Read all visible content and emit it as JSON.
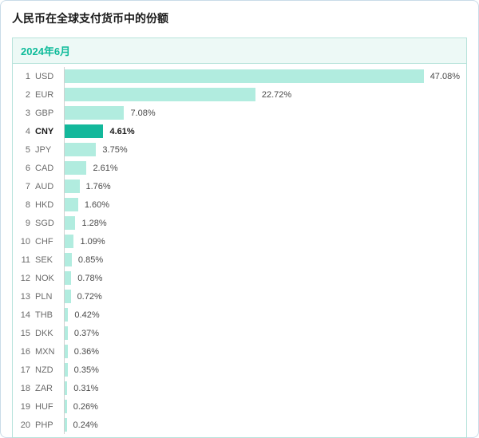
{
  "chart": {
    "title": "人民币在全球支付货币中的份额",
    "period": "2024年6月",
    "type": "bar",
    "max_value": 47.08,
    "bar_area_full_width": 470,
    "bar_color_default": "#b1ecdf",
    "bar_color_highlight": "#13b89b",
    "panel_border_color": "#b7e3db",
    "header_bg": "#edf9f6",
    "header_text_color": "#0fbb9a",
    "rank_text_color": "#6b6b6b",
    "currency_text_color": "#6b6b6b",
    "value_text_color": "#4a4a4a",
    "axis_line_color": "#d0d0d0",
    "outer_border_color": "#c9dbe8",
    "background_color": "#ffffff",
    "title_fontsize": 14,
    "row_fontsize": 11,
    "items": [
      {
        "rank": 1,
        "currency": "USD",
        "value": 47.08,
        "label": "47.08%",
        "highlight": false
      },
      {
        "rank": 2,
        "currency": "EUR",
        "value": 22.72,
        "label": "22.72%",
        "highlight": false
      },
      {
        "rank": 3,
        "currency": "GBP",
        "value": 7.08,
        "label": "7.08%",
        "highlight": false
      },
      {
        "rank": 4,
        "currency": "CNY",
        "value": 4.61,
        "label": "4.61%",
        "highlight": true
      },
      {
        "rank": 5,
        "currency": "JPY",
        "value": 3.75,
        "label": "3.75%",
        "highlight": false
      },
      {
        "rank": 6,
        "currency": "CAD",
        "value": 2.61,
        "label": "2.61%",
        "highlight": false
      },
      {
        "rank": 7,
        "currency": "AUD",
        "value": 1.76,
        "label": "1.76%",
        "highlight": false
      },
      {
        "rank": 8,
        "currency": "HKD",
        "value": 1.6,
        "label": "1.60%",
        "highlight": false
      },
      {
        "rank": 9,
        "currency": "SGD",
        "value": 1.28,
        "label": "1.28%",
        "highlight": false
      },
      {
        "rank": 10,
        "currency": "CHF",
        "value": 1.09,
        "label": "1.09%",
        "highlight": false
      },
      {
        "rank": 11,
        "currency": "SEK",
        "value": 0.85,
        "label": "0.85%",
        "highlight": false
      },
      {
        "rank": 12,
        "currency": "NOK",
        "value": 0.78,
        "label": "0.78%",
        "highlight": false
      },
      {
        "rank": 13,
        "currency": "PLN",
        "value": 0.72,
        "label": "0.72%",
        "highlight": false
      },
      {
        "rank": 14,
        "currency": "THB",
        "value": 0.42,
        "label": "0.42%",
        "highlight": false
      },
      {
        "rank": 15,
        "currency": "DKK",
        "value": 0.37,
        "label": "0.37%",
        "highlight": false
      },
      {
        "rank": 16,
        "currency": "MXN",
        "value": 0.36,
        "label": "0.36%",
        "highlight": false
      },
      {
        "rank": 17,
        "currency": "NZD",
        "value": 0.35,
        "label": "0.35%",
        "highlight": false
      },
      {
        "rank": 18,
        "currency": "ZAR",
        "value": 0.31,
        "label": "0.31%",
        "highlight": false
      },
      {
        "rank": 19,
        "currency": "HUF",
        "value": 0.26,
        "label": "0.26%",
        "highlight": false
      },
      {
        "rank": 20,
        "currency": "PHP",
        "value": 0.24,
        "label": "0.24%",
        "highlight": false
      }
    ]
  }
}
